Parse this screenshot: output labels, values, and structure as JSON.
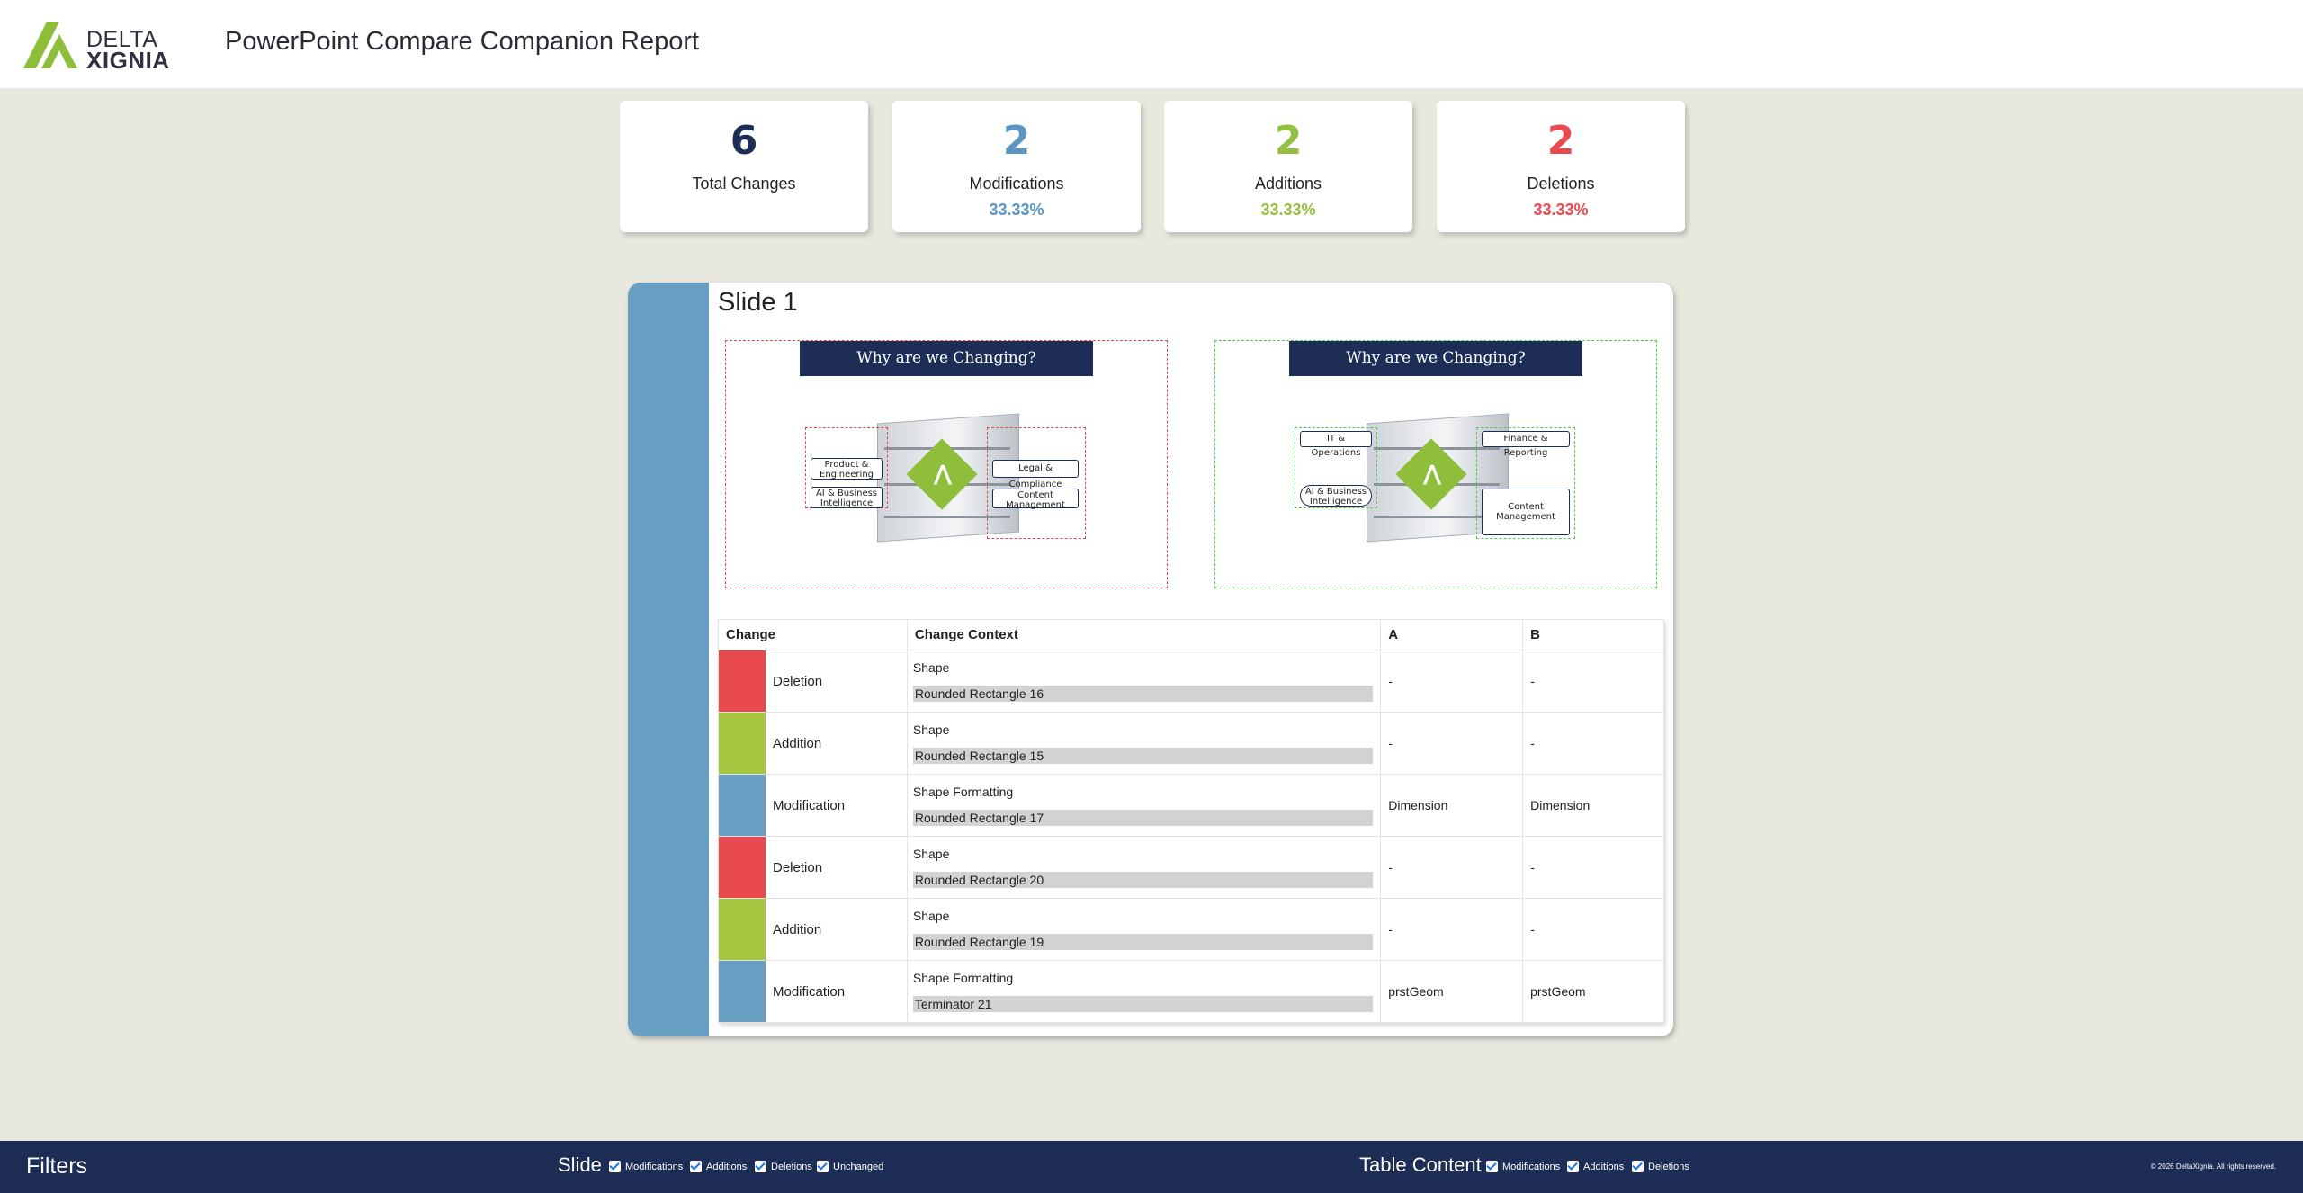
{
  "header": {
    "logo_line1": "DELTA",
    "logo_line2": "XIGNIA",
    "title": "PowerPoint Compare Companion Report"
  },
  "stats": [
    {
      "value": "6",
      "label": "Total Changes",
      "percent": "",
      "color": "#1d2d55"
    },
    {
      "value": "2",
      "label": "Modifications",
      "percent": "33.33%",
      "color": "#5b95c2"
    },
    {
      "value": "2",
      "label": "Additions",
      "percent": "33.33%",
      "color": "#93c13f"
    },
    {
      "value": "2",
      "label": "Deletions",
      "percent": "33.33%",
      "color": "#e84a50"
    }
  ],
  "slide": {
    "title": "Slide 1",
    "banner": "Why are we Changing?",
    "preview_a": {
      "tags": [
        "Product & Engineering",
        "AI & Business Intelligence",
        "Legal & Compliance",
        "Content Management"
      ]
    },
    "preview_b": {
      "tags": [
        "IT & Operations",
        "Finance & Reporting",
        "AI & Business Intelligence",
        "Content Management"
      ]
    }
  },
  "table": {
    "headers": [
      "Change",
      "Change Context",
      "A",
      "B"
    ],
    "rows": [
      {
        "change": "Deletion",
        "type": "Shape",
        "name": "Rounded Rectangle 16",
        "a": "-",
        "b": "-",
        "color": "#e84a50"
      },
      {
        "change": "Addition",
        "type": "Shape",
        "name": "Rounded Rectangle 15",
        "a": "-",
        "b": "-",
        "color": "#a6c640"
      },
      {
        "change": "Modification",
        "type": "Shape Formatting",
        "name": "Rounded Rectangle 17",
        "a": "Dimension",
        "b": "Dimension",
        "color": "#6a9fc4"
      },
      {
        "change": "Deletion",
        "type": "Shape",
        "name": "Rounded Rectangle 20",
        "a": "-",
        "b": "-",
        "color": "#e84a50"
      },
      {
        "change": "Addition",
        "type": "Shape",
        "name": "Rounded Rectangle 19",
        "a": "-",
        "b": "-",
        "color": "#a6c640"
      },
      {
        "change": "Modification",
        "type": "Shape Formatting",
        "name": "Terminator 21",
        "a": "prstGeom",
        "b": "prstGeom",
        "color": "#6a9fc4"
      }
    ]
  },
  "footer": {
    "title": "Filters",
    "slide_group": "Slide",
    "slide_filters": [
      "Modifications",
      "Additions",
      "Deletions",
      "Unchanged"
    ],
    "table_group": "Table Content",
    "table_filters": [
      "Modifications",
      "Additions",
      "Deletions"
    ],
    "copyright": "© 2026 DeltaXignia. All rights reserved."
  }
}
